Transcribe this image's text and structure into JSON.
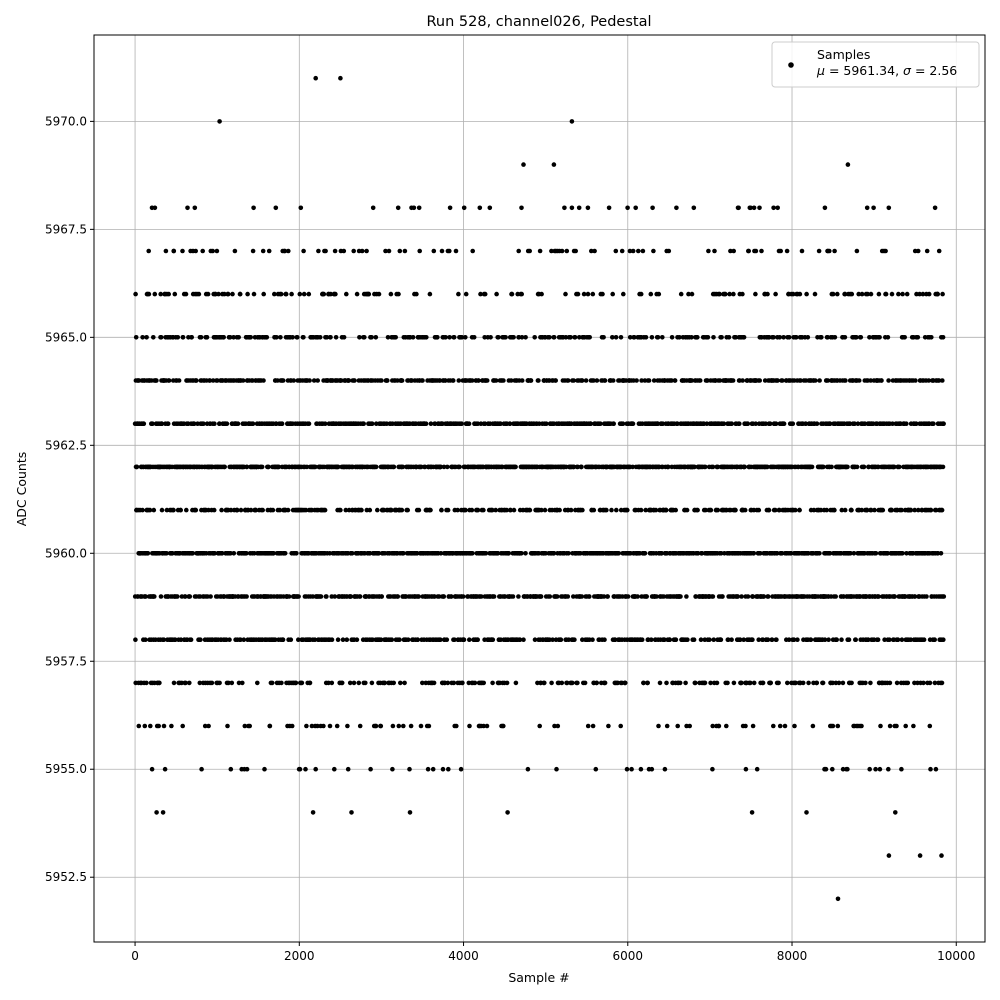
{
  "chart_data": {
    "type": "scatter",
    "title": "Run 528, channel026, Pedestal",
    "xlabel": "Sample #",
    "ylabel": "ADC Counts",
    "xlim": [
      -500,
      10350
    ],
    "ylim": [
      5951,
      5972
    ],
    "xticks": [
      0,
      2000,
      4000,
      6000,
      8000,
      10000
    ],
    "xtick_labels": [
      "0",
      "2000",
      "4000",
      "6000",
      "8000",
      "10000"
    ],
    "yticks": [
      5952.5,
      5955.0,
      5957.5,
      5960.0,
      5962.5,
      5965.0,
      5967.5,
      5970.0
    ],
    "ytick_labels": [
      "5952.5",
      "5955.0",
      "5957.5",
      "5960.0",
      "5962.5",
      "5965.0",
      "5967.5",
      "5970.0"
    ],
    "grid": true,
    "legend_position": "top-right",
    "marker_color": "#000000",
    "series": [
      {
        "name": "Samples",
        "stats_label": "= 5961.34,",
        "stats_label_2": "= 2.56",
        "n_samples": 9850,
        "level_distribution": [
          {
            "level": 5952,
            "fraction": 0.0002
          },
          {
            "level": 5953,
            "fraction": 0.0004
          },
          {
            "level": 5954,
            "fraction": 0.002
          },
          {
            "level": 5955,
            "fraction": 0.008
          },
          {
            "level": 5956,
            "fraction": 0.022
          },
          {
            "level": 5957,
            "fraction": 0.045
          },
          {
            "level": 5958,
            "fraction": 0.08
          },
          {
            "level": 5959,
            "fraction": 0.12
          },
          {
            "level": 5960,
            "fraction": 0.15
          },
          {
            "level": 5961,
            "fraction": 0.085
          },
          {
            "level": 5962,
            "fraction": 0.155
          },
          {
            "level": 5963,
            "fraction": 0.125
          },
          {
            "level": 5964,
            "fraction": 0.085
          },
          {
            "level": 5965,
            "fraction": 0.06
          },
          {
            "level": 5966,
            "fraction": 0.035
          },
          {
            "level": 5967,
            "fraction": 0.02
          },
          {
            "level": 5968,
            "fraction": 0.006
          },
          {
            "level": 5969,
            "fraction": 0.0003
          },
          {
            "level": 5970,
            "fraction": 0.0002
          },
          {
            "level": 5971,
            "fraction": 0.0002
          }
        ],
        "outliers": [
          {
            "x": 8560,
            "y": 5952
          },
          {
            "x": 9180,
            "y": 5953
          },
          {
            "x": 9560,
            "y": 5953
          },
          {
            "x": 9820,
            "y": 5953
          },
          {
            "x": 2200,
            "y": 5971
          },
          {
            "x": 2500,
            "y": 5971
          },
          {
            "x": 1030,
            "y": 5970
          },
          {
            "x": 5320,
            "y": 5970
          },
          {
            "x": 4730,
            "y": 5969
          },
          {
            "x": 5100,
            "y": 5969
          },
          {
            "x": 8680,
            "y": 5969
          }
        ]
      }
    ]
  }
}
